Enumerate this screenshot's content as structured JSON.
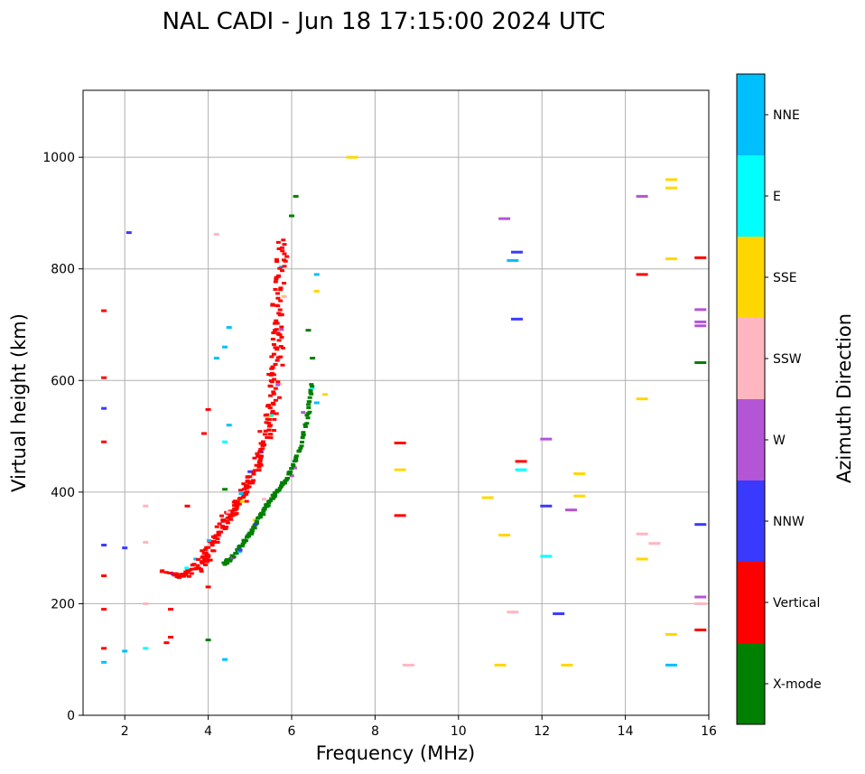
{
  "chart_data": {
    "type": "scatter",
    "title": "NAL CADI - Jun 18 17:15:00 2024 UTC",
    "xlabel": "Frequency (MHz)",
    "ylabel": "Virtual height (km)",
    "xlim": [
      1,
      16
    ],
    "ylim": [
      0,
      1120
    ],
    "xticks": [
      2,
      4,
      6,
      8,
      10,
      12,
      14,
      16
    ],
    "yticks": [
      0,
      200,
      400,
      600,
      800,
      1000
    ],
    "grid": true,
    "colorbar": {
      "label": "Azimuth Direction",
      "categories": [
        {
          "name": "X-mode",
          "color": "#008000"
        },
        {
          "name": "Vertical",
          "color": "#ff0000"
        },
        {
          "name": "NNW",
          "color": "#3a3aff"
        },
        {
          "name": "W",
          "color": "#b455d6"
        },
        {
          "name": "SSW",
          "color": "#ffb6c1"
        },
        {
          "name": "SSE",
          "color": "#ffd700"
        },
        {
          "name": "E",
          "color": "#00ffff"
        },
        {
          "name": "NNE",
          "color": "#00bfff"
        }
      ]
    },
    "traces": [
      {
        "name": "O-mode trace",
        "category": "Vertical",
        "points": [
          [
            3.0,
            255
          ],
          [
            3.4,
            250
          ],
          [
            3.8,
            270
          ],
          [
            4.0,
            290
          ],
          [
            4.2,
            320
          ],
          [
            4.4,
            345
          ],
          [
            4.6,
            370
          ],
          [
            4.8,
            395
          ],
          [
            5.0,
            420
          ],
          [
            5.2,
            455
          ],
          [
            5.4,
            500
          ],
          [
            5.5,
            540
          ],
          [
            5.6,
            600
          ],
          [
            5.65,
            660
          ],
          [
            5.7,
            720
          ],
          [
            5.72,
            790
          ],
          [
            5.75,
            860
          ]
        ]
      },
      {
        "name": "X-mode trace",
        "category": "X-mode",
        "points": [
          [
            4.4,
            272
          ],
          [
            4.6,
            285
          ],
          [
            4.8,
            305
          ],
          [
            5.0,
            325
          ],
          [
            5.2,
            350
          ],
          [
            5.4,
            375
          ],
          [
            5.6,
            395
          ],
          [
            5.8,
            415
          ],
          [
            6.0,
            440
          ],
          [
            6.2,
            480
          ],
          [
            6.4,
            540
          ],
          [
            6.5,
            600
          ]
        ]
      }
    ],
    "echoes": [
      {
        "f": 1.5,
        "h": 725,
        "c": "Vertical"
      },
      {
        "f": 1.5,
        "h": 605,
        "c": "Vertical"
      },
      {
        "f": 1.5,
        "h": 550,
        "c": "NNW"
      },
      {
        "f": 1.5,
        "h": 490,
        "c": "Vertical"
      },
      {
        "f": 1.5,
        "h": 305,
        "c": "NNW"
      },
      {
        "f": 1.5,
        "h": 250,
        "c": "Vertical"
      },
      {
        "f": 1.5,
        "h": 190,
        "c": "Vertical"
      },
      {
        "f": 1.5,
        "h": 120,
        "c": "Vertical"
      },
      {
        "f": 1.5,
        "h": 95,
        "c": "NNE"
      },
      {
        "f": 2.1,
        "h": 865,
        "c": "NNW"
      },
      {
        "f": 2.5,
        "h": 375,
        "c": "SSW"
      },
      {
        "f": 2.5,
        "h": 310,
        "c": "SSW"
      },
      {
        "f": 2.5,
        "h": 200,
        "c": "SSW"
      },
      {
        "f": 2.5,
        "h": 120,
        "c": "E"
      },
      {
        "f": 2.0,
        "h": 115,
        "c": "NNE"
      },
      {
        "f": 2.0,
        "h": 300,
        "c": "NNW"
      },
      {
        "f": 3.1,
        "h": 190,
        "c": "Vertical"
      },
      {
        "f": 3.0,
        "h": 130,
        "c": "Vertical"
      },
      {
        "f": 3.1,
        "h": 140,
        "c": "Vertical"
      },
      {
        "f": 3.5,
        "h": 375,
        "c": "Vertical"
      },
      {
        "f": 3.9,
        "h": 505,
        "c": "Vertical"
      },
      {
        "f": 4.0,
        "h": 548,
        "c": "Vertical"
      },
      {
        "f": 4.0,
        "h": 135,
        "c": "X-mode"
      },
      {
        "f": 4.0,
        "h": 230,
        "c": "Vertical"
      },
      {
        "f": 4.2,
        "h": 862,
        "c": "SSW"
      },
      {
        "f": 4.2,
        "h": 640,
        "c": "NNE"
      },
      {
        "f": 4.4,
        "h": 660,
        "c": "NNE"
      },
      {
        "f": 4.5,
        "h": 695,
        "c": "NNE"
      },
      {
        "f": 4.4,
        "h": 490,
        "c": "E"
      },
      {
        "f": 4.5,
        "h": 520,
        "c": "NNE"
      },
      {
        "f": 4.4,
        "h": 405,
        "c": "X-mode"
      },
      {
        "f": 4.4,
        "h": 100,
        "c": "NNE"
      },
      {
        "f": 6.1,
        "h": 930,
        "c": "X-mode"
      },
      {
        "f": 6.0,
        "h": 895,
        "c": "X-mode"
      },
      {
        "f": 6.6,
        "h": 790,
        "c": "NNE"
      },
      {
        "f": 6.6,
        "h": 760,
        "c": "SSE"
      },
      {
        "f": 6.4,
        "h": 690,
        "c": "X-mode"
      },
      {
        "f": 6.5,
        "h": 640,
        "c": "X-mode"
      },
      {
        "f": 6.6,
        "h": 560,
        "c": "NNE"
      },
      {
        "f": 6.8,
        "h": 575,
        "c": "SSE"
      },
      {
        "f": 7.45,
        "h": 1000,
        "c": "SSE"
      },
      {
        "f": 8.6,
        "h": 488,
        "c": "Vertical"
      },
      {
        "f": 8.6,
        "h": 440,
        "c": "SSE"
      },
      {
        "f": 8.6,
        "h": 358,
        "c": "Vertical"
      },
      {
        "f": 8.8,
        "h": 90,
        "c": "SSW"
      },
      {
        "f": 10.7,
        "h": 390,
        "c": "SSE"
      },
      {
        "f": 11.0,
        "h": 90,
        "c": "SSE"
      },
      {
        "f": 11.1,
        "h": 890,
        "c": "W"
      },
      {
        "f": 11.1,
        "h": 323,
        "c": "SSE"
      },
      {
        "f": 11.3,
        "h": 815,
        "c": "NNE"
      },
      {
        "f": 11.4,
        "h": 830,
        "c": "NNW"
      },
      {
        "f": 11.4,
        "h": 710,
        "c": "NNW"
      },
      {
        "f": 11.5,
        "h": 455,
        "c": "Vertical"
      },
      {
        "f": 11.5,
        "h": 440,
        "c": "E"
      },
      {
        "f": 11.3,
        "h": 185,
        "c": "SSW"
      },
      {
        "f": 12.1,
        "h": 495,
        "c": "W"
      },
      {
        "f": 12.1,
        "h": 375,
        "c": "NNW"
      },
      {
        "f": 12.1,
        "h": 285,
        "c": "E"
      },
      {
        "f": 12.4,
        "h": 182,
        "c": "NNW"
      },
      {
        "f": 12.6,
        "h": 90,
        "c": "SSE"
      },
      {
        "f": 12.7,
        "h": 368,
        "c": "W"
      },
      {
        "f": 12.9,
        "h": 433,
        "c": "SSE"
      },
      {
        "f": 12.9,
        "h": 393,
        "c": "SSE"
      },
      {
        "f": 14.4,
        "h": 930,
        "c": "W"
      },
      {
        "f": 14.4,
        "h": 790,
        "c": "Vertical"
      },
      {
        "f": 14.4,
        "h": 567,
        "c": "SSE"
      },
      {
        "f": 14.4,
        "h": 325,
        "c": "SSW"
      },
      {
        "f": 14.4,
        "h": 280,
        "c": "SSE"
      },
      {
        "f": 14.7,
        "h": 308,
        "c": "SSW"
      },
      {
        "f": 15.1,
        "h": 960,
        "c": "SSE"
      },
      {
        "f": 15.1,
        "h": 945,
        "c": "SSE"
      },
      {
        "f": 15.1,
        "h": 818,
        "c": "SSE"
      },
      {
        "f": 15.1,
        "h": 145,
        "c": "SSE"
      },
      {
        "f": 15.1,
        "h": 90,
        "c": "NNE"
      },
      {
        "f": 15.8,
        "h": 820,
        "c": "Vertical"
      },
      {
        "f": 15.8,
        "h": 727,
        "c": "W"
      },
      {
        "f": 15.8,
        "h": 705,
        "c": "W"
      },
      {
        "f": 15.8,
        "h": 698,
        "c": "W"
      },
      {
        "f": 15.8,
        "h": 632,
        "c": "X-mode"
      },
      {
        "f": 15.8,
        "h": 342,
        "c": "NNW"
      },
      {
        "f": 15.8,
        "h": 212,
        "c": "W"
      },
      {
        "f": 15.8,
        "h": 200,
        "c": "SSW"
      },
      {
        "f": 15.8,
        "h": 153,
        "c": "Vertical"
      }
    ]
  }
}
